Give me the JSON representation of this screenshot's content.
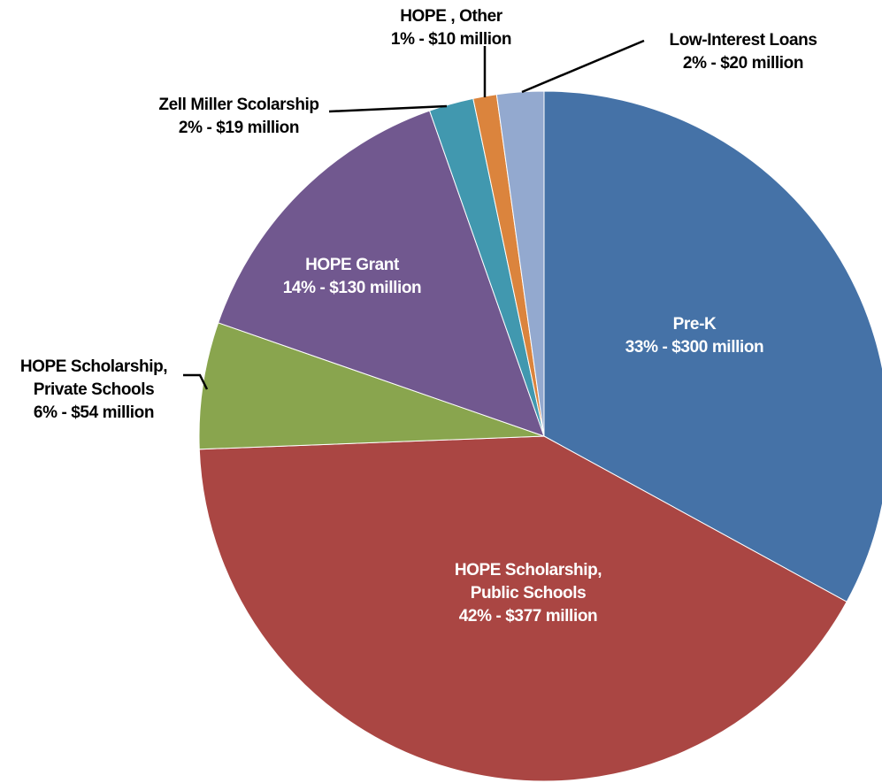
{
  "chart_data": {
    "type": "pie",
    "categories": [
      "Pre-K",
      "HOPE Scholarship, Public Schools",
      "HOPE Scholarship, Private Schools",
      "HOPE Grant",
      "Zell Miller Scolarship",
      "HOPE , Other",
      "Low-Interest Loans"
    ],
    "values": [
      300,
      377,
      54,
      130,
      19,
      10,
      20
    ],
    "value_labels": [
      "33% - $300 million",
      "42% - $377 million",
      "6% - $54 million",
      "14% - $130 million",
      "2% - $19 million",
      "1% - $10 million",
      "2% - $20 million"
    ],
    "colors": [
      "#4572a7",
      "#aa4643",
      "#89a54e",
      "#71588f",
      "#4198af",
      "#db843d",
      "#93a9cf"
    ]
  }
}
